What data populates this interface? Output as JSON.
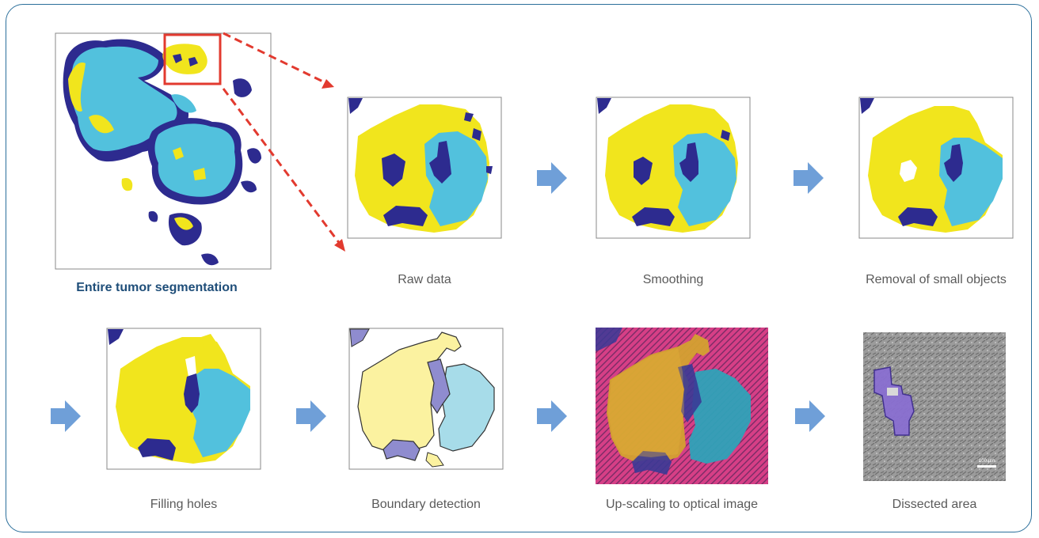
{
  "colors": {
    "frame": "#2b6f9b",
    "yellow": "#f1e51d",
    "cyan": "#52c1dd",
    "navy": "#2d2b8f",
    "arrow": "#6f9fd8",
    "dashed": "#e23a2f"
  },
  "captions": {
    "entire": "Entire tumor segmentation",
    "raw": "Raw data",
    "smoothing": "Smoothing",
    "removal": "Removal of small objects",
    "filling": "Filling holes",
    "boundary": "Boundary detection",
    "upscaling": "Up-scaling to optical image",
    "dissected": "Dissected area"
  },
  "scale_bar_label": "100 µm"
}
